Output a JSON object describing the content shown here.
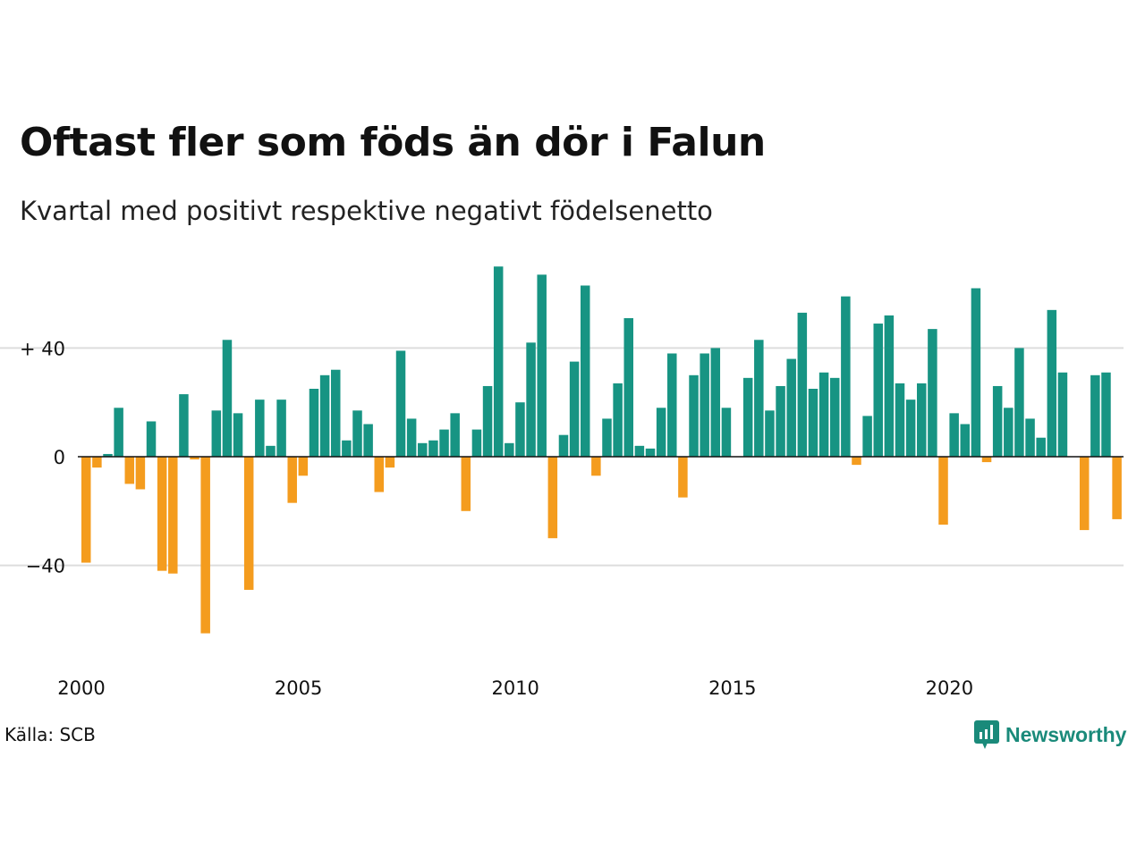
{
  "title": "Oftast fler som föds än dör i Falun",
  "subtitle": "Kvartal med positivt respektive negativt födelsenetto",
  "source": "Källa: SCB",
  "brand": "Newsworthy",
  "colors": {
    "positive": "#179483",
    "negative": "#f49c1e",
    "grid": "#dddddd",
    "brand": "#1a8a7a"
  },
  "chart_data": {
    "type": "bar",
    "x_start": 2000,
    "periods_per_year": 4,
    "ylim": [
      -75,
      75
    ],
    "yticks": [
      -40,
      0,
      40
    ],
    "ytick_labels": [
      "−40",
      "0",
      "+ 40"
    ],
    "xticks": [
      2000,
      2005,
      2010,
      2015,
      2020
    ],
    "values": [
      -39,
      -4,
      1,
      18,
      -10,
      -12,
      13,
      -42,
      -43,
      23,
      -1,
      -65,
      17,
      43,
      16,
      -49,
      21,
      4,
      21,
      -17,
      -7,
      25,
      30,
      32,
      6,
      17,
      12,
      -13,
      -4,
      39,
      14,
      5,
      6,
      10,
      16,
      -20,
      10,
      26,
      70,
      5,
      20,
      42,
      67,
      -30,
      8,
      35,
      63,
      -7,
      14,
      27,
      51,
      4,
      3,
      18,
      38,
      -15,
      30,
      38,
      40,
      18,
      0,
      29,
      43,
      17,
      26,
      36,
      53,
      25,
      31,
      29,
      59,
      -3,
      15,
      49,
      52,
      27,
      21,
      27,
      47,
      -25,
      16,
      12,
      62,
      -2,
      26,
      18,
      40,
      14,
      7,
      54,
      31,
      0,
      -27,
      30,
      31,
      -23
    ]
  }
}
